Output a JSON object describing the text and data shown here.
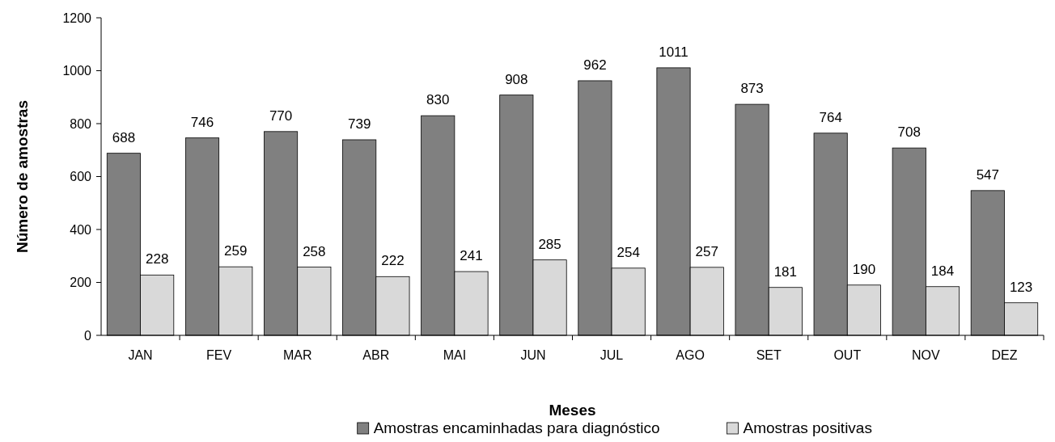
{
  "chart_data": {
    "type": "bar",
    "xlabel": "Meses",
    "ylabel": "Número de amostras",
    "categories": [
      "JAN",
      "FEV",
      "MAR",
      "ABR",
      "MAI",
      "JUN",
      "JUL",
      "AGO",
      "SET",
      "OUT",
      "NOV",
      "DEZ"
    ],
    "series": [
      {
        "name": "Amostras encaminhadas para diagnóstico",
        "color": "#808080",
        "values": [
          688,
          746,
          770,
          739,
          830,
          908,
          962,
          1011,
          873,
          764,
          708,
          547
        ]
      },
      {
        "name": "Amostras positivas",
        "color": "#d9d9d9",
        "values": [
          228,
          259,
          258,
          222,
          241,
          285,
          254,
          257,
          181,
          190,
          184,
          123
        ]
      }
    ],
    "ylim": [
      0,
      1200
    ],
    "yticks": [
      0,
      200,
      400,
      600,
      800,
      1000,
      1200
    ],
    "data_labels": true,
    "legend": "bottom",
    "grid": false
  }
}
